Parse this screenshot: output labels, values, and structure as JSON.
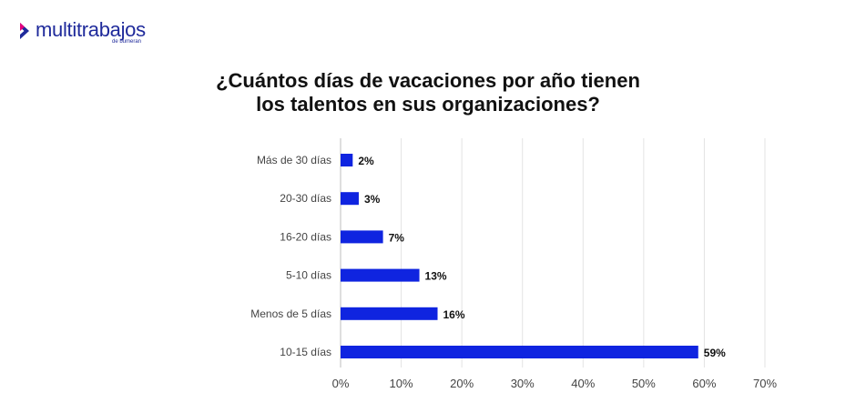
{
  "brand": {
    "name": "multitrabajos",
    "sub": "de bumeran",
    "color": "#1f2a9b",
    "accent": "#e4007c"
  },
  "title_lines": [
    "¿Cuántos días de vacaciones por año tienen",
    "los talentos en sus organizaciones?"
  ],
  "chart_data": {
    "type": "bar",
    "orientation": "horizontal",
    "categories": [
      "Más de 30 días",
      "20-30 días",
      "16-20 días",
      "5-10 días",
      "Menos de 5 días",
      "10-15 días"
    ],
    "values": [
      2,
      3,
      7,
      13,
      16,
      59
    ],
    "value_labels": [
      "2%",
      "3%",
      "7%",
      "13%",
      "16%",
      "59%"
    ],
    "xlim": [
      0,
      70
    ],
    "xticks": [
      0,
      10,
      20,
      30,
      40,
      50,
      60,
      70
    ],
    "xtick_labels": [
      "0%",
      "10%",
      "20%",
      "30%",
      "40%",
      "50%",
      "60%",
      "70%"
    ],
    "grid": true,
    "bar_color": "#0f24e0"
  }
}
